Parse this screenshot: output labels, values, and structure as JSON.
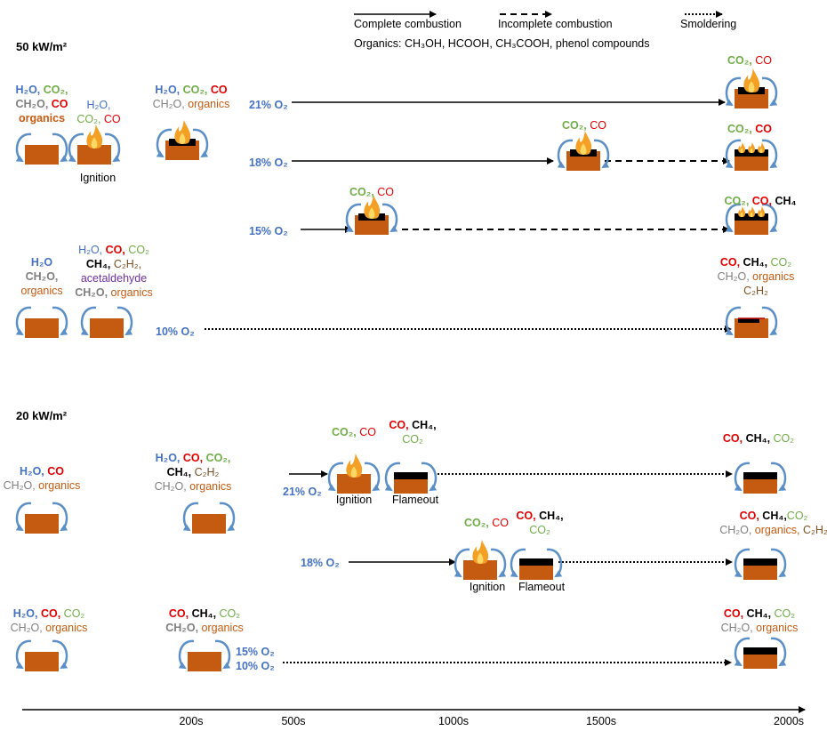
{
  "legend": {
    "complete": "Complete combustion",
    "incomplete": "Incomplete combustion",
    "smoldering": "Smoldering",
    "organics_note": "Organics: CH₃OH, HCOOH, CH₃COOH, phenol compounds"
  },
  "sections": [
    {
      "title": "50 kW/m²",
      "oxygen": [
        "21% O₂",
        "18% O₂",
        "15% O₂",
        "10% O₂"
      ],
      "events": [
        "Ignition"
      ]
    },
    {
      "title": "20 kW/m²",
      "oxygen": [
        "21% O₂",
        "18% O₂",
        "15% O₂",
        "10% O₂"
      ],
      "events": [
        "Ignition",
        "Flameout",
        "Ignition",
        "Flameout"
      ]
    }
  ],
  "species_labels": [
    {
      "lines": [
        [
          {
            "text": "H₂O, ",
            "color": "#4472c4",
            "bold": true
          },
          {
            "text": "CO₂,",
            "color": "#70ad47",
            "bold": true
          }
        ],
        [
          {
            "text": "CH₂O, ",
            "color": "#7f7f7f",
            "bold": true
          },
          {
            "text": "CO",
            "color": "#e00000",
            "bold": true
          }
        ],
        [
          {
            "text": "organics",
            "color": "#c55a11",
            "bold": true
          }
        ]
      ]
    },
    {
      "lines": [
        [
          {
            "text": "H₂O,",
            "color": "#4472c4"
          }
        ],
        [
          {
            "text": "CO₂, ",
            "color": "#70ad47"
          },
          {
            "text": "CO",
            "color": "#e00000"
          }
        ]
      ]
    },
    {
      "lines": [
        [
          {
            "text": "H₂O, ",
            "color": "#4472c4",
            "bold": true
          },
          {
            "text": "CO₂, ",
            "color": "#70ad47",
            "bold": true
          },
          {
            "text": "CO",
            "color": "#e00000",
            "bold": true
          }
        ],
        [
          {
            "text": "CH₂O, ",
            "color": "#7f7f7f"
          },
          {
            "text": "organics",
            "color": "#c55a11"
          }
        ]
      ]
    },
    {
      "lines": [
        [
          {
            "text": "CO₂, ",
            "color": "#70ad47",
            "bold": true
          },
          {
            "text": "CO",
            "color": "#e00000"
          }
        ]
      ]
    },
    {
      "lines": [
        [
          {
            "text": "CO₂, ",
            "color": "#70ad47",
            "bold": true
          },
          {
            "text": "CO",
            "color": "#e00000"
          }
        ]
      ]
    },
    {
      "lines": [
        [
          {
            "text": "CO₂, ",
            "color": "#70ad47",
            "bold": true
          },
          {
            "text": "CO",
            "color": "#e00000",
            "bold": true
          }
        ]
      ]
    },
    {
      "lines": [
        [
          {
            "text": "CO₂, ",
            "color": "#70ad47",
            "bold": true
          },
          {
            "text": "CO",
            "color": "#e00000"
          }
        ]
      ]
    },
    {
      "lines": [
        [
          {
            "text": "CO₂, ",
            "color": "#70ad47",
            "bold": true
          },
          {
            "text": "CO, ",
            "color": "#e00000",
            "bold": true
          },
          {
            "text": "CH₄",
            "color": "#000000",
            "bold": true
          }
        ]
      ]
    },
    {
      "lines": [
        [
          {
            "text": "H₂O",
            "color": "#4472c4",
            "bold": true
          }
        ],
        [
          {
            "text": "CH₂O,",
            "color": "#7f7f7f",
            "bold": true
          }
        ],
        [
          {
            "text": "organics",
            "color": "#c55a11"
          }
        ]
      ]
    },
    {
      "lines": [
        [
          {
            "text": "H₂O, ",
            "color": "#4472c4"
          },
          {
            "text": "CO, ",
            "color": "#e00000",
            "bold": true
          },
          {
            "text": "CO₂",
            "color": "#70ad47"
          }
        ],
        [
          {
            "text": "CH₄, ",
            "color": "#000000",
            "bold": true
          },
          {
            "text": "C₂H₂,",
            "color": "#7f4f1f"
          }
        ],
        [
          {
            "text": "acetaldehyde",
            "color": "#7030a0"
          }
        ],
        [
          {
            "text": "CH₂O, ",
            "color": "#7f7f7f",
            "bold": true
          },
          {
            "text": "organics",
            "color": "#c55a11"
          }
        ]
      ]
    },
    {
      "lines": [
        [
          {
            "text": "CO, ",
            "color": "#e00000",
            "bold": true
          },
          {
            "text": "CH₄, ",
            "color": "#000000",
            "bold": true
          },
          {
            "text": "CO₂",
            "color": "#70ad47"
          }
        ],
        [
          {
            "text": "CH₂O, ",
            "color": "#7f7f7f"
          },
          {
            "text": "organics",
            "color": "#c55a11"
          }
        ],
        [
          {
            "text": "C₂H₂",
            "color": "#7f4f1f"
          }
        ]
      ]
    },
    {
      "lines": [
        [
          {
            "text": "H₂O, ",
            "color": "#4472c4",
            "bold": true
          },
          {
            "text": "CO",
            "color": "#e00000",
            "bold": true
          }
        ],
        [
          {
            "text": "CH₂O, ",
            "color": "#7f7f7f"
          },
          {
            "text": "organics",
            "color": "#c55a11"
          }
        ]
      ]
    },
    {
      "lines": [
        [
          {
            "text": "H₂O, ",
            "color": "#4472c4",
            "bold": true
          },
          {
            "text": "CO, ",
            "color": "#e00000",
            "bold": true
          },
          {
            "text": "CO₂,",
            "color": "#70ad47",
            "bold": true
          }
        ],
        [
          {
            "text": "CH₄, ",
            "color": "#000000",
            "bold": true
          },
          {
            "text": "C₂H₂",
            "color": "#7f4f1f"
          }
        ],
        [
          {
            "text": "CH₂O, ",
            "color": "#7f7f7f"
          },
          {
            "text": "organics",
            "color": "#c55a11"
          }
        ]
      ]
    },
    {
      "lines": [
        [
          {
            "text": "CO₂, ",
            "color": "#70ad47",
            "bold": true
          },
          {
            "text": "CO",
            "color": "#e00000"
          }
        ]
      ]
    },
    {
      "lines": [
        [
          {
            "text": "CO, ",
            "color": "#e00000",
            "bold": true
          },
          {
            "text": "CH₄,",
            "color": "#000000",
            "bold": true
          }
        ],
        [
          {
            "text": "CO₂",
            "color": "#70ad47"
          }
        ]
      ]
    },
    {
      "lines": [
        [
          {
            "text": "CO, ",
            "color": "#e00000",
            "bold": true
          },
          {
            "text": "CH₄, ",
            "color": "#000000",
            "bold": true
          },
          {
            "text": "CO₂",
            "color": "#70ad47"
          }
        ]
      ]
    },
    {
      "lines": [
        [
          {
            "text": "CO₂, ",
            "color": "#70ad47",
            "bold": true
          },
          {
            "text": "CO",
            "color": "#e00000"
          }
        ]
      ]
    },
    {
      "lines": [
        [
          {
            "text": "CO, ",
            "color": "#e00000",
            "bold": true
          },
          {
            "text": "CH₄,",
            "color": "#000000",
            "bold": true
          }
        ],
        [
          {
            "text": "CO₂",
            "color": "#70ad47"
          }
        ]
      ]
    },
    {
      "lines": [
        [
          {
            "text": "CO, ",
            "color": "#e00000",
            "bold": true
          },
          {
            "text": "CH₄,",
            "color": "#000000",
            "bold": true
          },
          {
            "text": "CO₂",
            "color": "#70ad47"
          }
        ],
        [
          {
            "text": "CH₂O, ",
            "color": "#7f7f7f"
          },
          {
            "text": "organics, ",
            "color": "#c55a11"
          },
          {
            "text": "C₂H₂",
            "color": "#7f4f1f"
          }
        ]
      ]
    },
    {
      "lines": [
        [
          {
            "text": "H₂O, ",
            "color": "#4472c4",
            "bold": true
          },
          {
            "text": "CO, ",
            "color": "#e00000",
            "bold": true
          },
          {
            "text": "CO₂",
            "color": "#70ad47"
          }
        ],
        [
          {
            "text": "CH₂O, ",
            "color": "#7f7f7f"
          },
          {
            "text": "organics",
            "color": "#c55a11"
          }
        ]
      ]
    },
    {
      "lines": [
        [
          {
            "text": "CO, ",
            "color": "#e00000",
            "bold": true
          },
          {
            "text": "CH₄, ",
            "color": "#000000",
            "bold": true
          },
          {
            "text": "CO₂",
            "color": "#70ad47"
          }
        ],
        [
          {
            "text": "CH₂O, ",
            "color": "#7f7f7f",
            "bold": true
          },
          {
            "text": "organics",
            "color": "#c55a11"
          }
        ]
      ]
    },
    {
      "lines": [
        [
          {
            "text": "CO, ",
            "color": "#e00000",
            "bold": true
          },
          {
            "text": "CH₄, ",
            "color": "#000000",
            "bold": true
          },
          {
            "text": "CO₂",
            "color": "#70ad47"
          }
        ],
        [
          {
            "text": "CH₂O, ",
            "color": "#7f7f7f"
          },
          {
            "text": "organics",
            "color": "#c55a11"
          }
        ]
      ]
    }
  ],
  "timeline": {
    "ticks": [
      "200s",
      "500s",
      "1000s",
      "1500s",
      "2000s"
    ]
  }
}
